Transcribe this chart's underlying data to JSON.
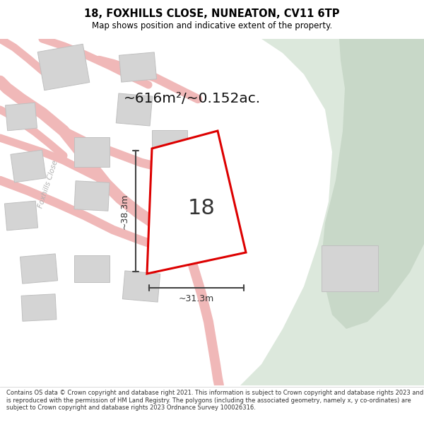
{
  "title_line1": "18, FOXHILLS CLOSE, NUNEATON, CV11 6TP",
  "title_line2": "Map shows position and indicative extent of the property.",
  "area_text": "~616m²/~0.152ac.",
  "number_label": "18",
  "dim_vertical": "~38.3m",
  "dim_horizontal": "~31.3m",
  "street_label": "Foxhills Close",
  "footer_text": "Contains OS data © Crown copyright and database right 2021. This information is subject to Crown copyright and database rights 2023 and is reproduced with the permission of HM Land Registry. The polygons (including the associated geometry, namely x, y co-ordinates) are subject to Crown copyright and database rights 2023 Ordnance Survey 100026316.",
  "bg_map_color": "#eeecec",
  "bg_green_color_light": "#dce8dc",
  "bg_green_color_dark": "#c8d8c8",
  "plot_fill_color": "#ffffff",
  "plot_edge_color": "#dd0000",
  "road_color": "#f0b8b8",
  "building_color": "#d4d4d4",
  "building_edge_color": "#c0c0c0",
  "title_bg_color": "#ffffff",
  "footer_bg_color": "#ffffff",
  "dim_line_color": "#444444",
  "figsize": [
    6.0,
    6.25
  ],
  "dpi": 100
}
